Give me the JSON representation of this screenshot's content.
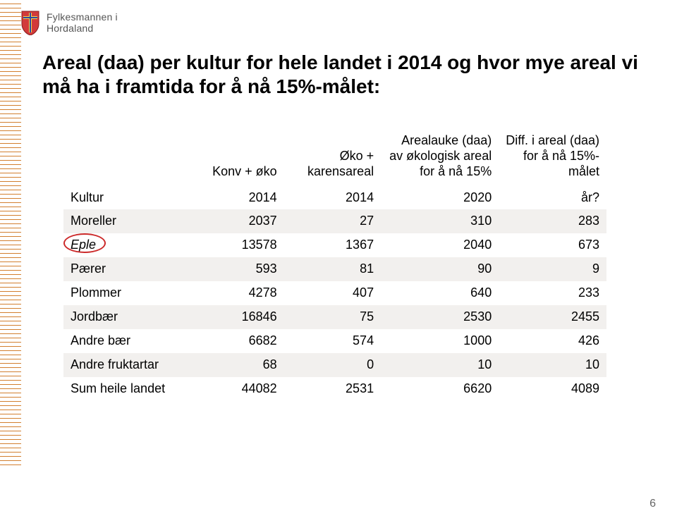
{
  "header": {
    "line1": "Fylkesmannen i",
    "line2": "Hordaland"
  },
  "title": "Areal (daa) per kultur for hele landet i 2014 og hvor mye areal vi må ha i framtida for å nå 15%-målet:",
  "columns": {
    "c1": "Konv + øko",
    "c2": "Øko + karensareal",
    "c3": "Arealauke (daa) av økologisk areal for å nå 15%",
    "c4": "Diff. i areal (daa) for å nå 15%-målet"
  },
  "subhead": {
    "label": "Kultur",
    "v1": "2014",
    "v2": "2014",
    "v3": "2020",
    "v4": "år?"
  },
  "rows": [
    {
      "label": "Moreller",
      "v1": "2037",
      "v2": "27",
      "v3": "310",
      "v4": "283",
      "band": true
    },
    {
      "label": "Eple",
      "v1": "13578",
      "v2": "1367",
      "v3": "2040",
      "v4": "673",
      "band": false,
      "italic": true,
      "circled": true
    },
    {
      "label": "Pærer",
      "v1": "593",
      "v2": "81",
      "v3": "90",
      "v4": "9",
      "band": true
    },
    {
      "label": "Plommer",
      "v1": "4278",
      "v2": "407",
      "v3": "640",
      "v4": "233",
      "band": false
    },
    {
      "label": "Jordbær",
      "v1": "16846",
      "v2": "75",
      "v3": "2530",
      "v4": "2455",
      "band": true
    },
    {
      "label": "Andre bær",
      "v1": "6682",
      "v2": "574",
      "v3": "1000",
      "v4": "426",
      "band": false
    },
    {
      "label": "Andre fruktartar",
      "v1": "68",
      "v2": "0",
      "v3": "10",
      "v4": "10",
      "band": true
    },
    {
      "label": "Sum heile landet",
      "v1": "44082",
      "v2": "2531",
      "v3": "6620",
      "v4": "4089",
      "band": false
    }
  ],
  "pagenum": "6",
  "colors": {
    "band": "#f2f0ee",
    "circle": "#cc2a2a",
    "tick": "#d27f2f",
    "headerText": "#555555"
  }
}
